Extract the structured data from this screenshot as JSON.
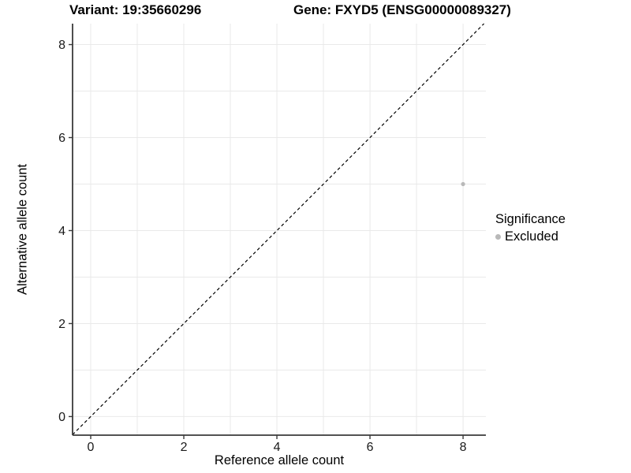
{
  "chart_data": {
    "type": "scatter",
    "titles": {
      "left": "Variant: 19:35660296",
      "right": "Gene: FXYD5 (ENSG00000089327)"
    },
    "xlabel": "Reference allele count",
    "ylabel": "Alternative allele count",
    "xlim": [
      -0.39,
      8.49
    ],
    "ylim": [
      -0.4,
      8.45
    ],
    "xticks": [
      0,
      2,
      4,
      6,
      8
    ],
    "yticks": [
      0,
      2,
      4,
      6,
      8
    ],
    "grid": true,
    "grid_interval": 1,
    "points": [
      {
        "x": 8,
        "y": 5,
        "series": "Excluded",
        "color": "#b9b9b9"
      }
    ],
    "reference_line": {
      "slope": 1,
      "intercept": 0,
      "style": "dashed",
      "color": "#000000"
    },
    "legend": {
      "title": "Significance",
      "position": "right",
      "items": [
        {
          "label": "Excluded",
          "marker": "circle-icon",
          "color": "#b9b9b9"
        }
      ]
    },
    "style": {
      "grid_color": "#e9e9e9",
      "axis_color": "#3a3a3a",
      "tick_color": "#3a3a3a",
      "text_color": "#000000"
    }
  }
}
